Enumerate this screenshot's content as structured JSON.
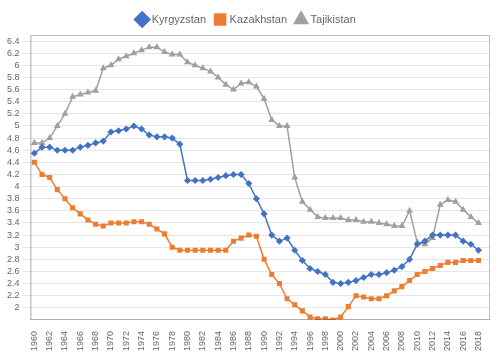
{
  "chart_data": {
    "type": "line",
    "x": [
      1960,
      1961,
      1962,
      1963,
      1964,
      1965,
      1966,
      1967,
      1968,
      1969,
      1970,
      1971,
      1972,
      1973,
      1974,
      1975,
      1976,
      1977,
      1978,
      1979,
      1980,
      1981,
      1982,
      1983,
      1984,
      1985,
      1986,
      1987,
      1988,
      1989,
      1990,
      1991,
      1992,
      1993,
      1994,
      1995,
      1996,
      1997,
      1998,
      1999,
      2000,
      2001,
      2002,
      2003,
      2004,
      2005,
      2006,
      2007,
      2008,
      2009,
      2010,
      2011,
      2012,
      2013,
      2014,
      2015,
      2016,
      2017,
      2018
    ],
    "series": [
      {
        "name": "Kyrgyzstan",
        "color": "#4472C4",
        "marker": "diamond",
        "values": [
          4.55,
          4.65,
          4.65,
          4.6,
          4.6,
          4.6,
          4.65,
          4.68,
          4.72,
          4.75,
          4.9,
          4.92,
          4.95,
          5.0,
          4.95,
          4.85,
          4.82,
          4.82,
          4.8,
          4.7,
          4.1,
          4.1,
          4.1,
          4.12,
          4.15,
          4.18,
          4.2,
          4.2,
          4.05,
          3.8,
          3.55,
          3.2,
          3.1,
          3.15,
          2.95,
          2.78,
          2.65,
          2.6,
          2.55,
          2.42,
          2.4,
          2.42,
          2.45,
          2.5,
          2.55,
          2.55,
          2.58,
          2.62,
          2.68,
          2.8,
          3.05,
          3.1,
          3.2,
          3.2,
          3.2,
          3.2,
          3.1,
          3.05,
          2.95
        ]
      },
      {
        "name": "Kazakhstan",
        "color": "#ED7D31",
        "marker": "square",
        "values": [
          4.4,
          4.2,
          4.15,
          3.95,
          3.8,
          3.65,
          3.55,
          3.45,
          3.38,
          3.35,
          3.4,
          3.4,
          3.4,
          3.42,
          3.42,
          3.38,
          3.3,
          3.22,
          3.0,
          2.95,
          2.95,
          2.95,
          2.95,
          2.95,
          2.95,
          2.95,
          3.1,
          3.15,
          3.2,
          3.18,
          2.8,
          2.55,
          2.4,
          2.15,
          2.05,
          1.95,
          1.85,
          1.82,
          1.82,
          1.8,
          1.85,
          2.02,
          2.2,
          2.18,
          2.15,
          2.15,
          2.2,
          2.28,
          2.35,
          2.45,
          2.55,
          2.6,
          2.65,
          2.7,
          2.75,
          2.75,
          2.78,
          2.78,
          2.78
        ]
      },
      {
        "name": "Tajikistan",
        "color": "#A0A0A0",
        "marker": "triangle",
        "values": [
          4.72,
          4.72,
          4.8,
          5.0,
          5.2,
          5.48,
          5.52,
          5.55,
          5.58,
          5.95,
          6.0,
          6.1,
          6.15,
          6.2,
          6.25,
          6.3,
          6.3,
          6.22,
          6.18,
          6.18,
          6.05,
          6.0,
          5.95,
          5.9,
          5.8,
          5.68,
          5.6,
          5.7,
          5.72,
          5.65,
          5.45,
          5.1,
          5.0,
          5.0,
          4.15,
          3.75,
          3.62,
          3.5,
          3.48,
          3.48,
          3.48,
          3.45,
          3.45,
          3.42,
          3.42,
          3.4,
          3.38,
          3.35,
          3.35,
          3.6,
          3.08,
          3.05,
          3.15,
          3.7,
          3.78,
          3.75,
          3.62,
          3.5,
          3.4
        ]
      }
    ],
    "xlim": [
      1959.5,
      2019.5
    ],
    "xticks": [
      1960,
      1962,
      1964,
      1966,
      1968,
      1970,
      1972,
      1974,
      1976,
      1978,
      1980,
      1982,
      1984,
      1986,
      1988,
      1990,
      1992,
      1994,
      1996,
      1998,
      2000,
      2002,
      2004,
      2006,
      2008,
      2010,
      2012,
      2014,
      2016,
      2018
    ],
    "ylim": [
      1.8,
      6.5
    ],
    "yticks": [
      2,
      2.2,
      2.4,
      2.6,
      2.8,
      3,
      3.2,
      3.4,
      3.6,
      3.8,
      4,
      4.2,
      4.4,
      4.6,
      4.8,
      5,
      5.2,
      5.4,
      5.6,
      5.8,
      6,
      6.2,
      6.4
    ],
    "grid": "y",
    "legend": "top"
  }
}
